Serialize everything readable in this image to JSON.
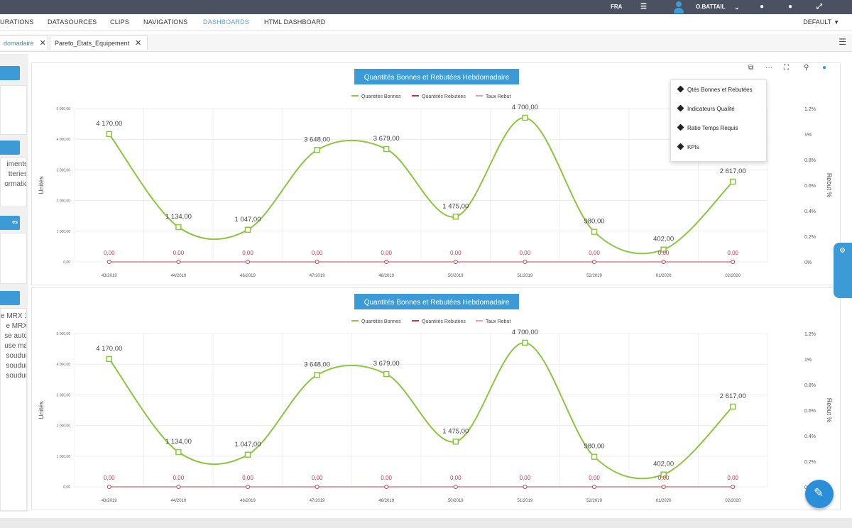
{
  "topbar": {
    "lang": "FRA",
    "menu_icon": "list-icon",
    "user": "O.BATTAIL",
    "user_chevron": "⌄",
    "icons": [
      "help-icon",
      "settings-icon",
      "expand-icon"
    ]
  },
  "nav": {
    "items": [
      "URATIONS",
      "DATASOURCES",
      "CLIPS",
      "NAVIGATIONS",
      "DASHBOARDS",
      "HTML DASHBOARD"
    ],
    "active_index": 4,
    "default_label": "DEFAULT"
  },
  "tabs": [
    {
      "label": "domadaire",
      "close": "✕",
      "active": true
    },
    {
      "label": "Pareto_Etats_Equipement",
      "close": "✕",
      "active": false
    }
  ],
  "sidebar": {
    "texts_1": [
      "iments",
      "tteries",
      "ormatic"
    ],
    "button_3": "es",
    "texts_4": [
      "e MRX 1",
      "e MRX",
      "se auto",
      "use ma",
      "soudur",
      "soudur",
      "soudur"
    ]
  },
  "toolbar_icons": [
    "copy-icon",
    "more-icon",
    "fullscreen-icon",
    "filter-icon",
    "info-icon"
  ],
  "menu": {
    "items": [
      "Qtés Bonnes et Rebutées",
      "Indicateurs Qualité",
      "Ratio Temps Requis",
      "KPIs"
    ]
  },
  "colors": {
    "accent": "#3c9bd6",
    "good": "#8cc63f",
    "rejected": "#c0394b",
    "rate": "#e8a0a8"
  },
  "chart_data": [
    {
      "type": "line",
      "title": "Quantités Bonnes et Rebutées Hebdomadaire",
      "legend": [
        "Quantités Bonnes",
        "Quantités Rebutées",
        "Taux Rebut"
      ],
      "ylabel": "Unités",
      "y2label": "Rebut %",
      "yticks": [
        "5 000,00",
        "4 000,00",
        "3 000,00",
        "2 000,00",
        "1 000,00",
        "0,00"
      ],
      "y2ticks": [
        "1.2%",
        "1%",
        "0.8%",
        "0.6%",
        "0.4%",
        "0.2%",
        "0%"
      ],
      "ylim": [
        0,
        5000
      ],
      "y2lim": [
        0,
        1.2
      ],
      "categories": [
        "43/2019",
        "44/2019",
        "46/2019",
        "47/2019",
        "48/2019",
        "50/2019",
        "51/2019",
        "52/2019",
        "01/2020",
        "02/2020"
      ],
      "series": [
        {
          "name": "Quantités Bonnes",
          "values": [
            4170,
            1134,
            1047,
            3648,
            3679,
            1475,
            4700,
            980,
            402,
            2617
          ],
          "labels": [
            "4 170,00",
            "1 134,00",
            "1 047,00",
            "3 648,00",
            "3 679,00",
            "1 475,00",
            "4 700,00",
            "980,00",
            "402,00",
            "2 617,00"
          ]
        },
        {
          "name": "Quantités Rebutées",
          "values": [
            0,
            0,
            0,
            0,
            0,
            0,
            0,
            0,
            0,
            0
          ],
          "labels": [
            "0,00",
            "0,00",
            "0,00",
            "0,00",
            "0,00",
            "0,00",
            "0,00",
            "0,00",
            "0,00",
            "0,00"
          ]
        },
        {
          "name": "Taux Rebut",
          "values": [
            0,
            0,
            0,
            0,
            0,
            0,
            0,
            0,
            0,
            0
          ]
        }
      ]
    },
    {
      "type": "line",
      "title": "Quantités Bonnes et Rebutées Hebdomadaire",
      "legend": [
        "Quantités Bonnes",
        "Quantités Rebutées",
        "Taux Rebut"
      ],
      "ylabel": "Unités",
      "y2label": "Rebut %",
      "yticks": [
        "5 000,00",
        "4 000,00",
        "3 000,00",
        "2 000,00",
        "1 000,00",
        "0,00"
      ],
      "y2ticks": [
        "1.2%",
        "1%",
        "0.8%",
        "0.6%",
        "0.4%",
        "0.2%",
        "0%"
      ],
      "ylim": [
        0,
        5000
      ],
      "y2lim": [
        0,
        1.2
      ],
      "categories": [
        "43/2019",
        "44/2019",
        "46/2019",
        "47/2019",
        "48/2019",
        "50/2019",
        "51/2019",
        "52/2019",
        "01/2020",
        "02/2020"
      ],
      "series": [
        {
          "name": "Quantités Bonnes",
          "values": [
            4170,
            1134,
            1047,
            3648,
            3679,
            1475,
            4700,
            980,
            402,
            2617
          ],
          "labels": [
            "4 170,00",
            "1 134,00",
            "1 047,00",
            "3 648,00",
            "3 679,00",
            "1 475,00",
            "4 700,00",
            "980,00",
            "402,00",
            "2 617,00"
          ]
        },
        {
          "name": "Quantités Rebutées",
          "values": [
            0,
            0,
            0,
            0,
            0,
            0,
            0,
            0,
            0,
            0
          ],
          "labels": [
            "0,00",
            "0,00",
            "0,00",
            "0,00",
            "0,00",
            "0,00",
            "0,00",
            "0,00",
            "0,00",
            "0,00"
          ]
        },
        {
          "name": "Taux Rebut",
          "values": [
            0,
            0,
            0,
            0,
            0,
            0,
            0,
            0,
            0,
            0
          ]
        }
      ]
    }
  ]
}
